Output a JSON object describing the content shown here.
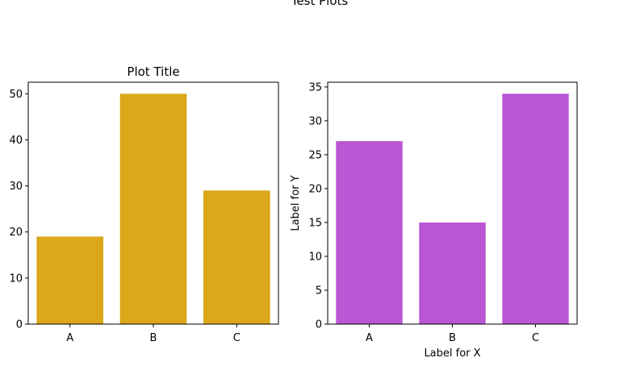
{
  "figure": {
    "suptitle": "Test Plots"
  },
  "chart_data": [
    {
      "type": "bar",
      "title": "Plot Title",
      "xlabel": "",
      "ylabel": "",
      "categories": [
        "A",
        "B",
        "C"
      ],
      "values": [
        19,
        50,
        29
      ],
      "ylim": [
        0,
        52.5
      ],
      "yticks": [
        0,
        10,
        20,
        30,
        40,
        50
      ],
      "color": "#daa81a",
      "grid": false
    },
    {
      "type": "bar",
      "title": "",
      "xlabel": "Label for X",
      "ylabel": "Label for Y",
      "categories": [
        "A",
        "B",
        "C"
      ],
      "values": [
        27,
        15,
        34
      ],
      "ylim": [
        0,
        35.7
      ],
      "yticks": [
        0,
        5,
        10,
        15,
        20,
        25,
        30,
        35
      ],
      "color": "#ba55d3",
      "grid": false
    }
  ]
}
